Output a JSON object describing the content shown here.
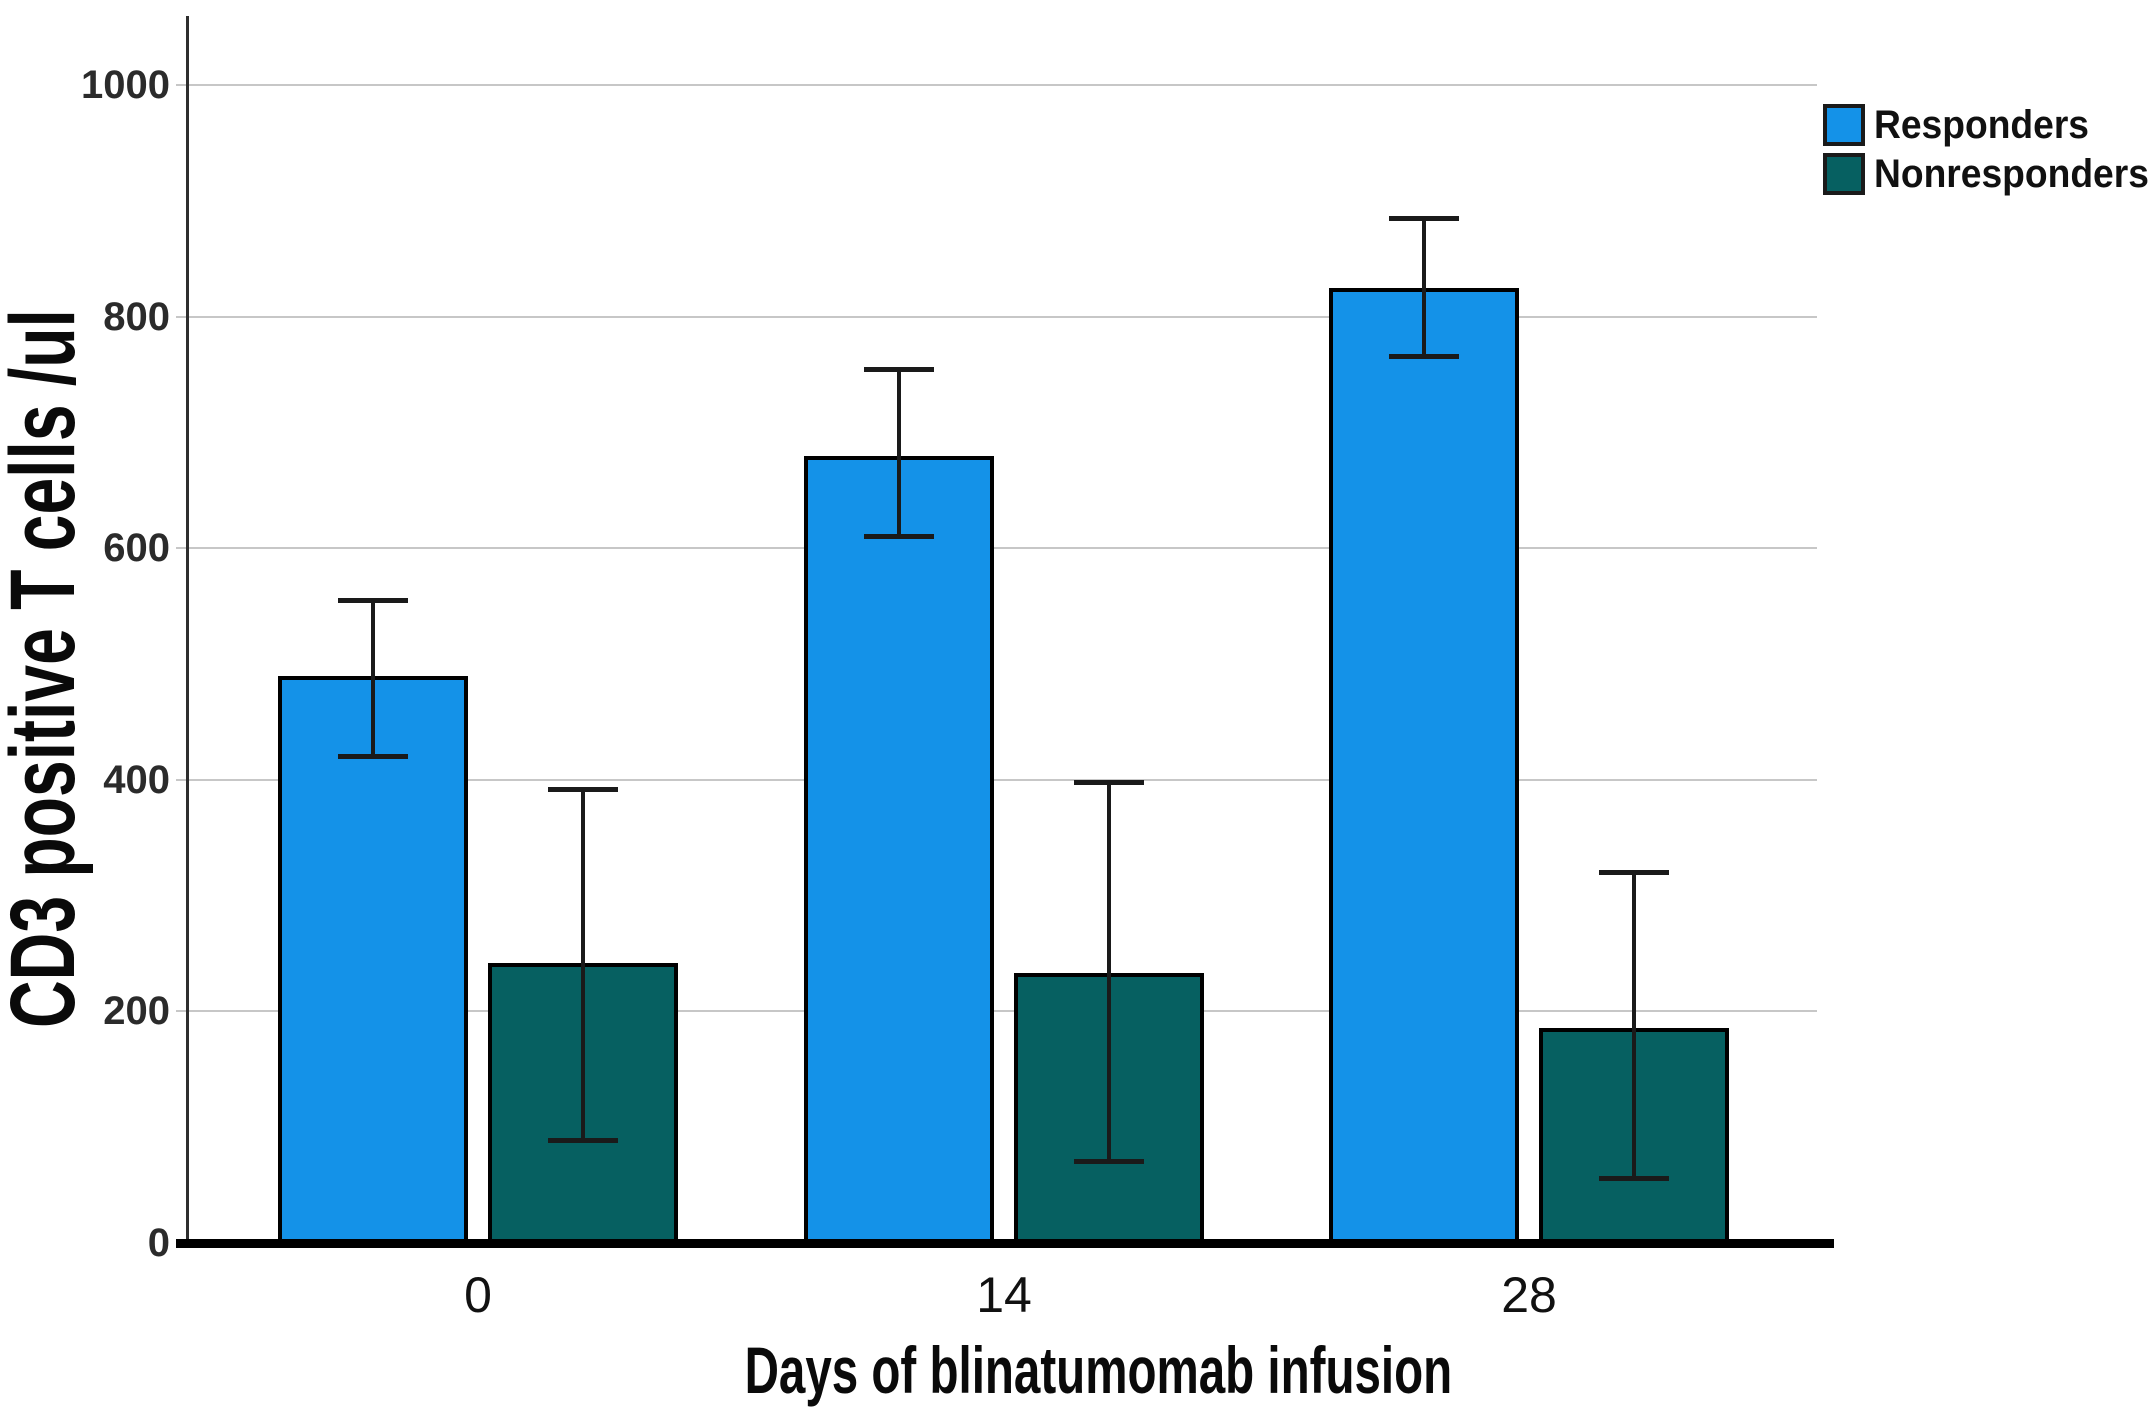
{
  "chart_data": {
    "type": "bar",
    "title": "",
    "xlabel": "Days of blinatumomab infusion",
    "ylabel": "CD3 positive T cells /ul",
    "categories": [
      "0",
      "14",
      "28"
    ],
    "series": [
      {
        "name": "Responders",
        "color": "#1492E8",
        "values": [
          490,
          680,
          825
        ],
        "err_low": [
          420,
          610,
          765
        ],
        "err_high": [
          555,
          755,
          885
        ]
      },
      {
        "name": "Nonresponders",
        "color": "#066061",
        "values": [
          242,
          233,
          186
        ],
        "err_low": [
          88,
          70,
          55
        ],
        "err_high": [
          392,
          398,
          320
        ]
      }
    ],
    "ylim": [
      0,
      1000
    ],
    "y_ticks": [
      0,
      200,
      400,
      600,
      800,
      1000
    ],
    "grid": true,
    "error_bars": true,
    "legend_position": "top-right",
    "colors": {
      "grid": "#c7c7c7",
      "axis": "#2e2e2e",
      "baseline": "#000000",
      "error": "#1a1a1a",
      "bar_border": "#000000"
    }
  }
}
